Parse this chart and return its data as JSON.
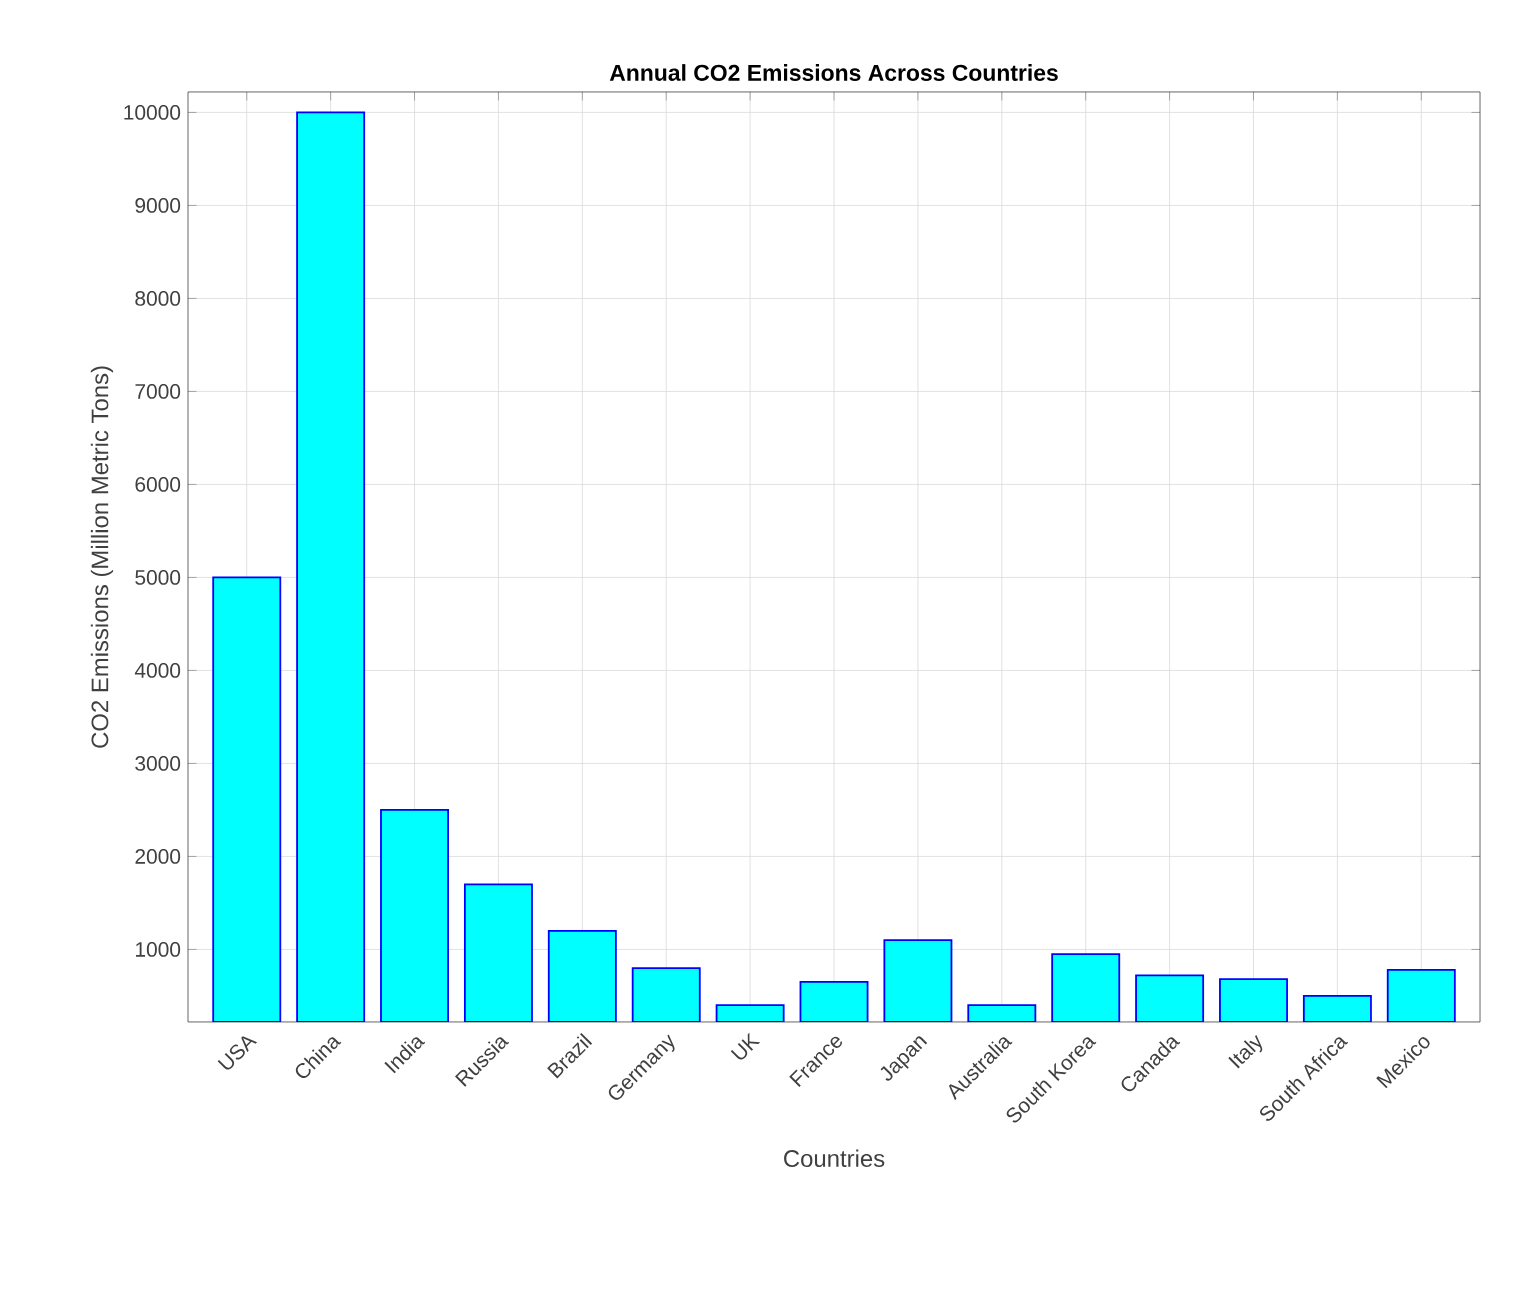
{
  "chart_data": {
    "type": "bar",
    "title": "Annual CO2 Emissions Across Countries",
    "xlabel": "Countries",
    "ylabel": "CO2 Emissions (Million Metric Tons)",
    "categories": [
      "USA",
      "China",
      "India",
      "Russia",
      "Brazil",
      "Germany",
      "UK",
      "France",
      "Japan",
      "Australia",
      "South Korea",
      "Canada",
      "Italy",
      "South Africa",
      "Mexico"
    ],
    "values": [
      5000,
      10000,
      2500,
      1700,
      1200,
      800,
      400,
      650,
      1100,
      400,
      950,
      720,
      680,
      500,
      780
    ],
    "color": "#00ffff",
    "ylim": [
      220,
      10220
    ],
    "yticks": [
      1000,
      2000,
      3000,
      4000,
      5000,
      6000,
      7000,
      8000,
      9000,
      10000
    ],
    "grid": true
  }
}
